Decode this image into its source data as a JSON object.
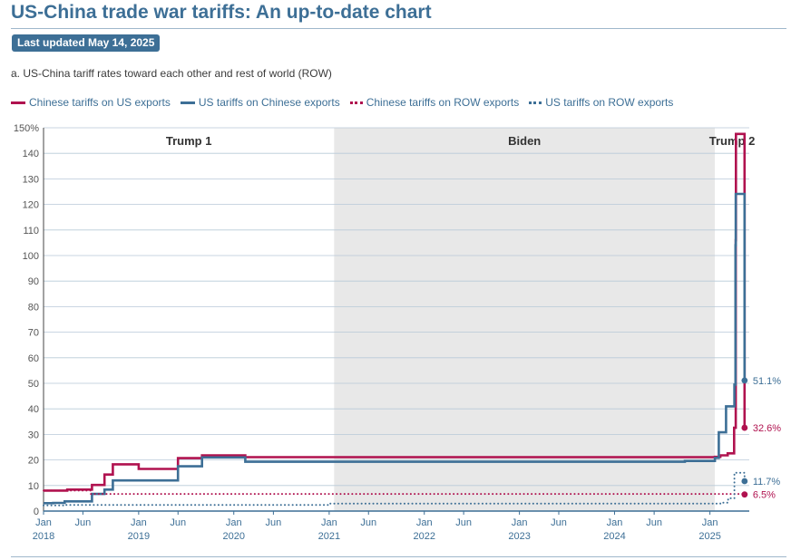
{
  "header": {
    "title": "US-China trade war tariffs: An up-to-date chart",
    "updated": "Last updated May 14, 2025",
    "subtitle": "a. US-China tariff rates toward each other and rest of world (ROW)"
  },
  "colors": {
    "chinese": "#b0124f",
    "us": "#3d6f96",
    "era_shade": "#e8e8e8",
    "grid": "#b8c9d8"
  },
  "chart_data": {
    "type": "line",
    "x_unit": "date",
    "y_unit": "%",
    "ylim": [
      0,
      150
    ],
    "yticks": [
      0,
      10,
      20,
      30,
      40,
      50,
      60,
      70,
      80,
      90,
      100,
      110,
      120,
      130,
      140,
      150
    ],
    "ytick_labels": [
      "0",
      "10",
      "20",
      "30",
      "40",
      "50",
      "60",
      "70",
      "80",
      "90",
      "100",
      "110",
      "120",
      "130",
      "140",
      "150%"
    ],
    "xlim": [
      "2018-01-01",
      "2025-06-01"
    ],
    "xticks": [
      {
        "date": "2018-01-01",
        "label": "Jan",
        "year": "2018"
      },
      {
        "date": "2018-06-01",
        "label": "Jun",
        "year": ""
      },
      {
        "date": "2019-01-01",
        "label": "Jan",
        "year": "2019"
      },
      {
        "date": "2019-06-01",
        "label": "Jun",
        "year": ""
      },
      {
        "date": "2020-01-01",
        "label": "Jan",
        "year": "2020"
      },
      {
        "date": "2020-06-01",
        "label": "Jun",
        "year": ""
      },
      {
        "date": "2021-01-01",
        "label": "Jan",
        "year": "2021"
      },
      {
        "date": "2021-06-01",
        "label": "Jun",
        "year": ""
      },
      {
        "date": "2022-01-01",
        "label": "Jan",
        "year": "2022"
      },
      {
        "date": "2022-06-01",
        "label": "Jun",
        "year": ""
      },
      {
        "date": "2023-01-01",
        "label": "Jan",
        "year": "2023"
      },
      {
        "date": "2023-06-01",
        "label": "Jun",
        "year": ""
      },
      {
        "date": "2024-01-01",
        "label": "Jan",
        "year": "2024"
      },
      {
        "date": "2024-06-01",
        "label": "Jun",
        "year": ""
      },
      {
        "date": "2025-01-01",
        "label": "Jan",
        "year": "2025"
      }
    ],
    "eras": [
      {
        "label": "Trump 1",
        "start": "2018-01-01",
        "end": "2021-01-20",
        "shaded": false
      },
      {
        "label": "Biden",
        "start": "2021-01-20",
        "end": "2025-01-20",
        "shaded": true
      },
      {
        "label": "Trump 2",
        "start": "2025-01-20",
        "end": "2025-06-01",
        "shaded": false
      }
    ],
    "series": [
      {
        "name": "Chinese tariffs on US exports",
        "style": "solid",
        "color": "#b0124f",
        "points": [
          [
            "2018-01-01",
            8.0
          ],
          [
            "2018-04-02",
            8.4
          ],
          [
            "2018-07-06",
            10.2
          ],
          [
            "2018-08-23",
            14.3
          ],
          [
            "2018-09-24",
            18.3
          ],
          [
            "2019-01-01",
            16.5
          ],
          [
            "2019-06-01",
            20.7
          ],
          [
            "2019-09-01",
            21.8
          ],
          [
            "2020-02-14",
            21.1
          ],
          [
            "2025-01-20",
            21.2
          ],
          [
            "2025-02-10",
            21.8
          ],
          [
            "2025-03-10",
            22.6
          ],
          [
            "2025-04-04",
            32.6
          ],
          [
            "2025-04-10",
            106.0
          ],
          [
            "2025-04-11",
            147.6
          ],
          [
            "2025-05-14",
            32.6
          ]
        ],
        "end_label": "32.6%"
      },
      {
        "name": "US tariffs on Chinese exports",
        "style": "solid",
        "color": "#3d6f96",
        "points": [
          [
            "2018-01-01",
            3.1
          ],
          [
            "2018-02-07",
            3.2
          ],
          [
            "2018-03-23",
            3.8
          ],
          [
            "2018-07-06",
            6.7
          ],
          [
            "2018-08-23",
            8.4
          ],
          [
            "2018-09-24",
            12.0
          ],
          [
            "2019-06-01",
            17.5
          ],
          [
            "2019-09-01",
            21.0
          ],
          [
            "2020-02-14",
            19.3
          ],
          [
            "2024-09-27",
            19.6
          ],
          [
            "2025-01-20",
            20.8
          ],
          [
            "2025-02-04",
            30.8
          ],
          [
            "2025-03-04",
            41.0
          ],
          [
            "2025-04-05",
            49.5
          ],
          [
            "2025-04-09",
            104.0
          ],
          [
            "2025-04-10",
            124.1
          ],
          [
            "2025-05-14",
            51.1
          ]
        ],
        "end_label": "51.1%"
      },
      {
        "name": "Chinese tariffs on ROW exports",
        "style": "dotted",
        "color": "#b0124f",
        "points": [
          [
            "2018-01-01",
            8.0
          ],
          [
            "2018-07-01",
            6.7
          ],
          [
            "2025-05-14",
            6.5
          ]
        ],
        "end_label": "6.5%"
      },
      {
        "name": "US tariffs on ROW exports",
        "style": "dotted",
        "color": "#3d6f96",
        "points": [
          [
            "2018-01-01",
            2.2
          ],
          [
            "2018-03-23",
            2.4
          ],
          [
            "2021-01-01",
            2.9
          ],
          [
            "2025-02-10",
            3.3
          ],
          [
            "2025-03-12",
            5.0
          ],
          [
            "2025-04-05",
            15.0
          ],
          [
            "2025-05-14",
            11.7
          ]
        ],
        "end_label": "11.7%"
      }
    ]
  }
}
